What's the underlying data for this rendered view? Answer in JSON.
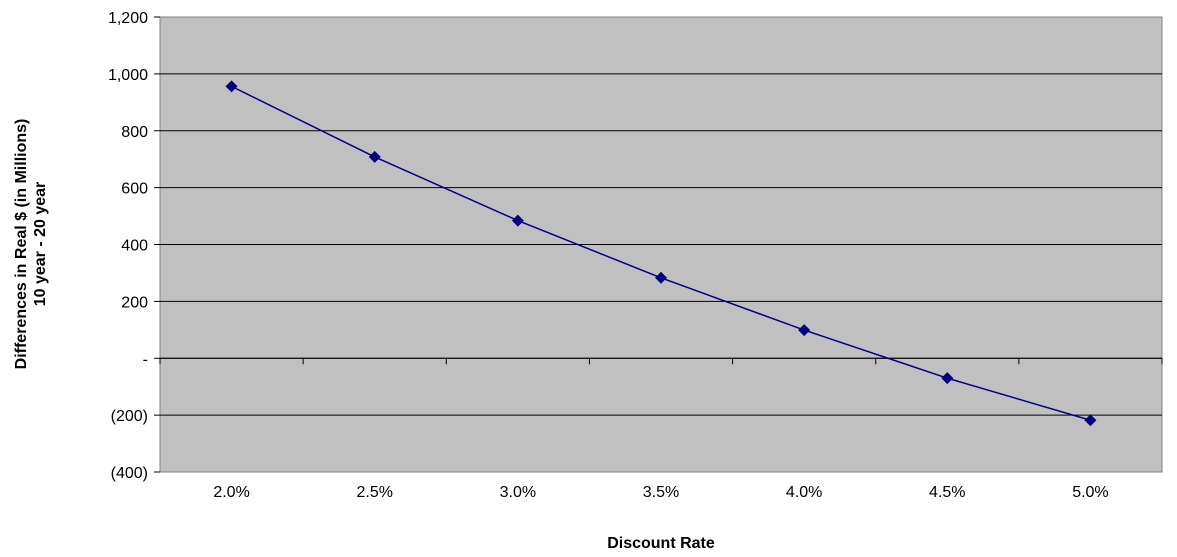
{
  "chart_data": {
    "type": "line",
    "title": "",
    "xlabel": "Discount Rate",
    "ylabel_lines": [
      "Differences in Real $ (in Millions)",
      "10 year - 20 year"
    ],
    "categories": [
      "2.0%",
      "2.5%",
      "3.0%",
      "3.5%",
      "4.0%",
      "4.5%",
      "5.0%"
    ],
    "series": [
      {
        "values": [
          956,
          708,
          484,
          283,
          99,
          -70,
          -218
        ]
      }
    ],
    "ylim": [
      -400,
      1200
    ],
    "yticks": [
      -400,
      -200,
      0,
      200,
      400,
      600,
      800,
      1000,
      1200
    ],
    "ytick_labels": [
      "(400)",
      "(200)",
      "-",
      "200",
      "400",
      "600",
      "800",
      "1,000",
      "1,200"
    ],
    "grid": true,
    "legend": "none",
    "colors": {
      "plot_background": "#c0c0c0",
      "gridline": "#000000",
      "series_line": "#000080",
      "marker": "#000080"
    },
    "marker": "diamond"
  }
}
